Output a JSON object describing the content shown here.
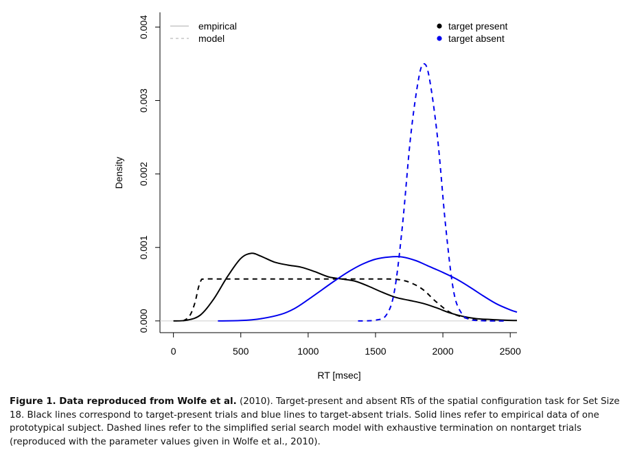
{
  "chart_data": {
    "type": "line",
    "xlabel": "RT [msec]",
    "ylabel": "Density",
    "xlim": [
      -100,
      2550
    ],
    "ylim": [
      -0.00016,
      0.0042
    ],
    "x_ticks": [
      0,
      500,
      1000,
      1500,
      2000,
      2500
    ],
    "x_tick_labels": [
      "0",
      "500",
      "1000",
      "1500",
      "2000",
      "2500"
    ],
    "y_ticks": [
      0.0,
      0.001,
      0.002,
      0.003,
      0.004
    ],
    "y_tick_labels": [
      "0.000",
      "0.001",
      "0.002",
      "0.003",
      "0.004"
    ],
    "baseline": 0,
    "grid": false,
    "legend_linestyle": {
      "position": "top-left",
      "entries": [
        {
          "label": "empirical",
          "style": "solid",
          "color": "#bbbbbb"
        },
        {
          "label": "model",
          "style": "dashed",
          "color": "#bbbbbb"
        }
      ]
    },
    "legend_condition": {
      "position": "top-right",
      "entries": [
        {
          "label": "target present",
          "color": "#000000"
        },
        {
          "label": "target absent",
          "color": "#0000ee"
        }
      ]
    },
    "series": [
      {
        "condition": "target present",
        "kind": "empirical",
        "color": "#000000",
        "dash": false,
        "points": [
          [
            0,
            0
          ],
          [
            100,
            1e-05
          ],
          [
            200,
            8e-05
          ],
          [
            300,
            0.0003
          ],
          [
            400,
            0.0006
          ],
          [
            500,
            0.00085
          ],
          [
            580,
            0.00092
          ],
          [
            650,
            0.00088
          ],
          [
            750,
            0.0008
          ],
          [
            850,
            0.00076
          ],
          [
            950,
            0.00073
          ],
          [
            1050,
            0.00067
          ],
          [
            1150,
            0.0006
          ],
          [
            1250,
            0.00057
          ],
          [
            1350,
            0.00054
          ],
          [
            1450,
            0.00047
          ],
          [
            1550,
            0.00039
          ],
          [
            1650,
            0.00032
          ],
          [
            1750,
            0.00028
          ],
          [
            1850,
            0.00024
          ],
          [
            1950,
            0.00018
          ],
          [
            2050,
            0.00011
          ],
          [
            2150,
            6e-05
          ],
          [
            2250,
            3e-05
          ],
          [
            2350,
            2e-05
          ],
          [
            2450,
            1e-05
          ],
          [
            2550,
            5e-06
          ]
        ]
      },
      {
        "condition": "target present",
        "kind": "model",
        "color": "#000000",
        "dash": true,
        "points": [
          [
            70,
            0
          ],
          [
            100,
            3e-05
          ],
          [
            130,
            0.0001
          ],
          [
            160,
            0.00025
          ],
          [
            185,
            0.00045
          ],
          [
            205,
            0.00055
          ],
          [
            230,
            0.00057
          ],
          [
            400,
            0.00057
          ],
          [
            600,
            0.00057
          ],
          [
            800,
            0.00057
          ],
          [
            1000,
            0.00057
          ],
          [
            1200,
            0.00057
          ],
          [
            1400,
            0.00057
          ],
          [
            1600,
            0.00057
          ],
          [
            1680,
            0.00056
          ],
          [
            1760,
            0.00052
          ],
          [
            1850,
            0.00043
          ],
          [
            1950,
            0.00026
          ],
          [
            2050,
            0.00012
          ],
          [
            2150,
            5e-05
          ],
          [
            2250,
            1e-05
          ],
          [
            2350,
            2e-06
          ],
          [
            2450,
            0
          ]
        ]
      },
      {
        "condition": "target absent",
        "kind": "empirical",
        "color": "#0000ee",
        "dash": false,
        "points": [
          [
            330,
            0
          ],
          [
            500,
            5e-06
          ],
          [
            650,
            3e-05
          ],
          [
            800,
            9e-05
          ],
          [
            900,
            0.00017
          ],
          [
            1000,
            0.00029
          ],
          [
            1100,
            0.00042
          ],
          [
            1200,
            0.00055
          ],
          [
            1300,
            0.00067
          ],
          [
            1400,
            0.00077
          ],
          [
            1500,
            0.00084
          ],
          [
            1600,
            0.00087
          ],
          [
            1700,
            0.00087
          ],
          [
            1800,
            0.00082
          ],
          [
            1900,
            0.00074
          ],
          [
            2000,
            0.00066
          ],
          [
            2100,
            0.00057
          ],
          [
            2200,
            0.00046
          ],
          [
            2300,
            0.00034
          ],
          [
            2400,
            0.00023
          ],
          [
            2500,
            0.00015
          ],
          [
            2550,
            0.00012
          ]
        ]
      },
      {
        "condition": "target absent",
        "kind": "model",
        "color": "#0000ee",
        "dash": true,
        "points": [
          [
            1370,
            0
          ],
          [
            1500,
            1e-05
          ],
          [
            1580,
            8e-05
          ],
          [
            1640,
            0.0004
          ],
          [
            1700,
            0.0013
          ],
          [
            1760,
            0.0025
          ],
          [
            1820,
            0.0033
          ],
          [
            1860,
            0.0035
          ],
          [
            1900,
            0.0033
          ],
          [
            1960,
            0.0025
          ],
          [
            2020,
            0.0013
          ],
          [
            2080,
            0.0004
          ],
          [
            2140,
            0.0001
          ],
          [
            2200,
            2e-05
          ],
          [
            2300,
            2e-06
          ],
          [
            2460,
            0
          ]
        ]
      }
    ]
  },
  "caption": {
    "lead": "Figure 1. Data reproduced from Wolfe et al.",
    "body": " (2010). Target-present and absent RTs of the spatial configuration task for Set Size 18. Black lines correspond to target-present trials and blue lines to target-absent trials. Solid lines refer to empirical data of one prototypical subject. Dashed lines refer to the simplified serial search model with exhaustive termination on nontarget trials (reproduced with the parameter values given in Wolfe et al., 2010)."
  }
}
